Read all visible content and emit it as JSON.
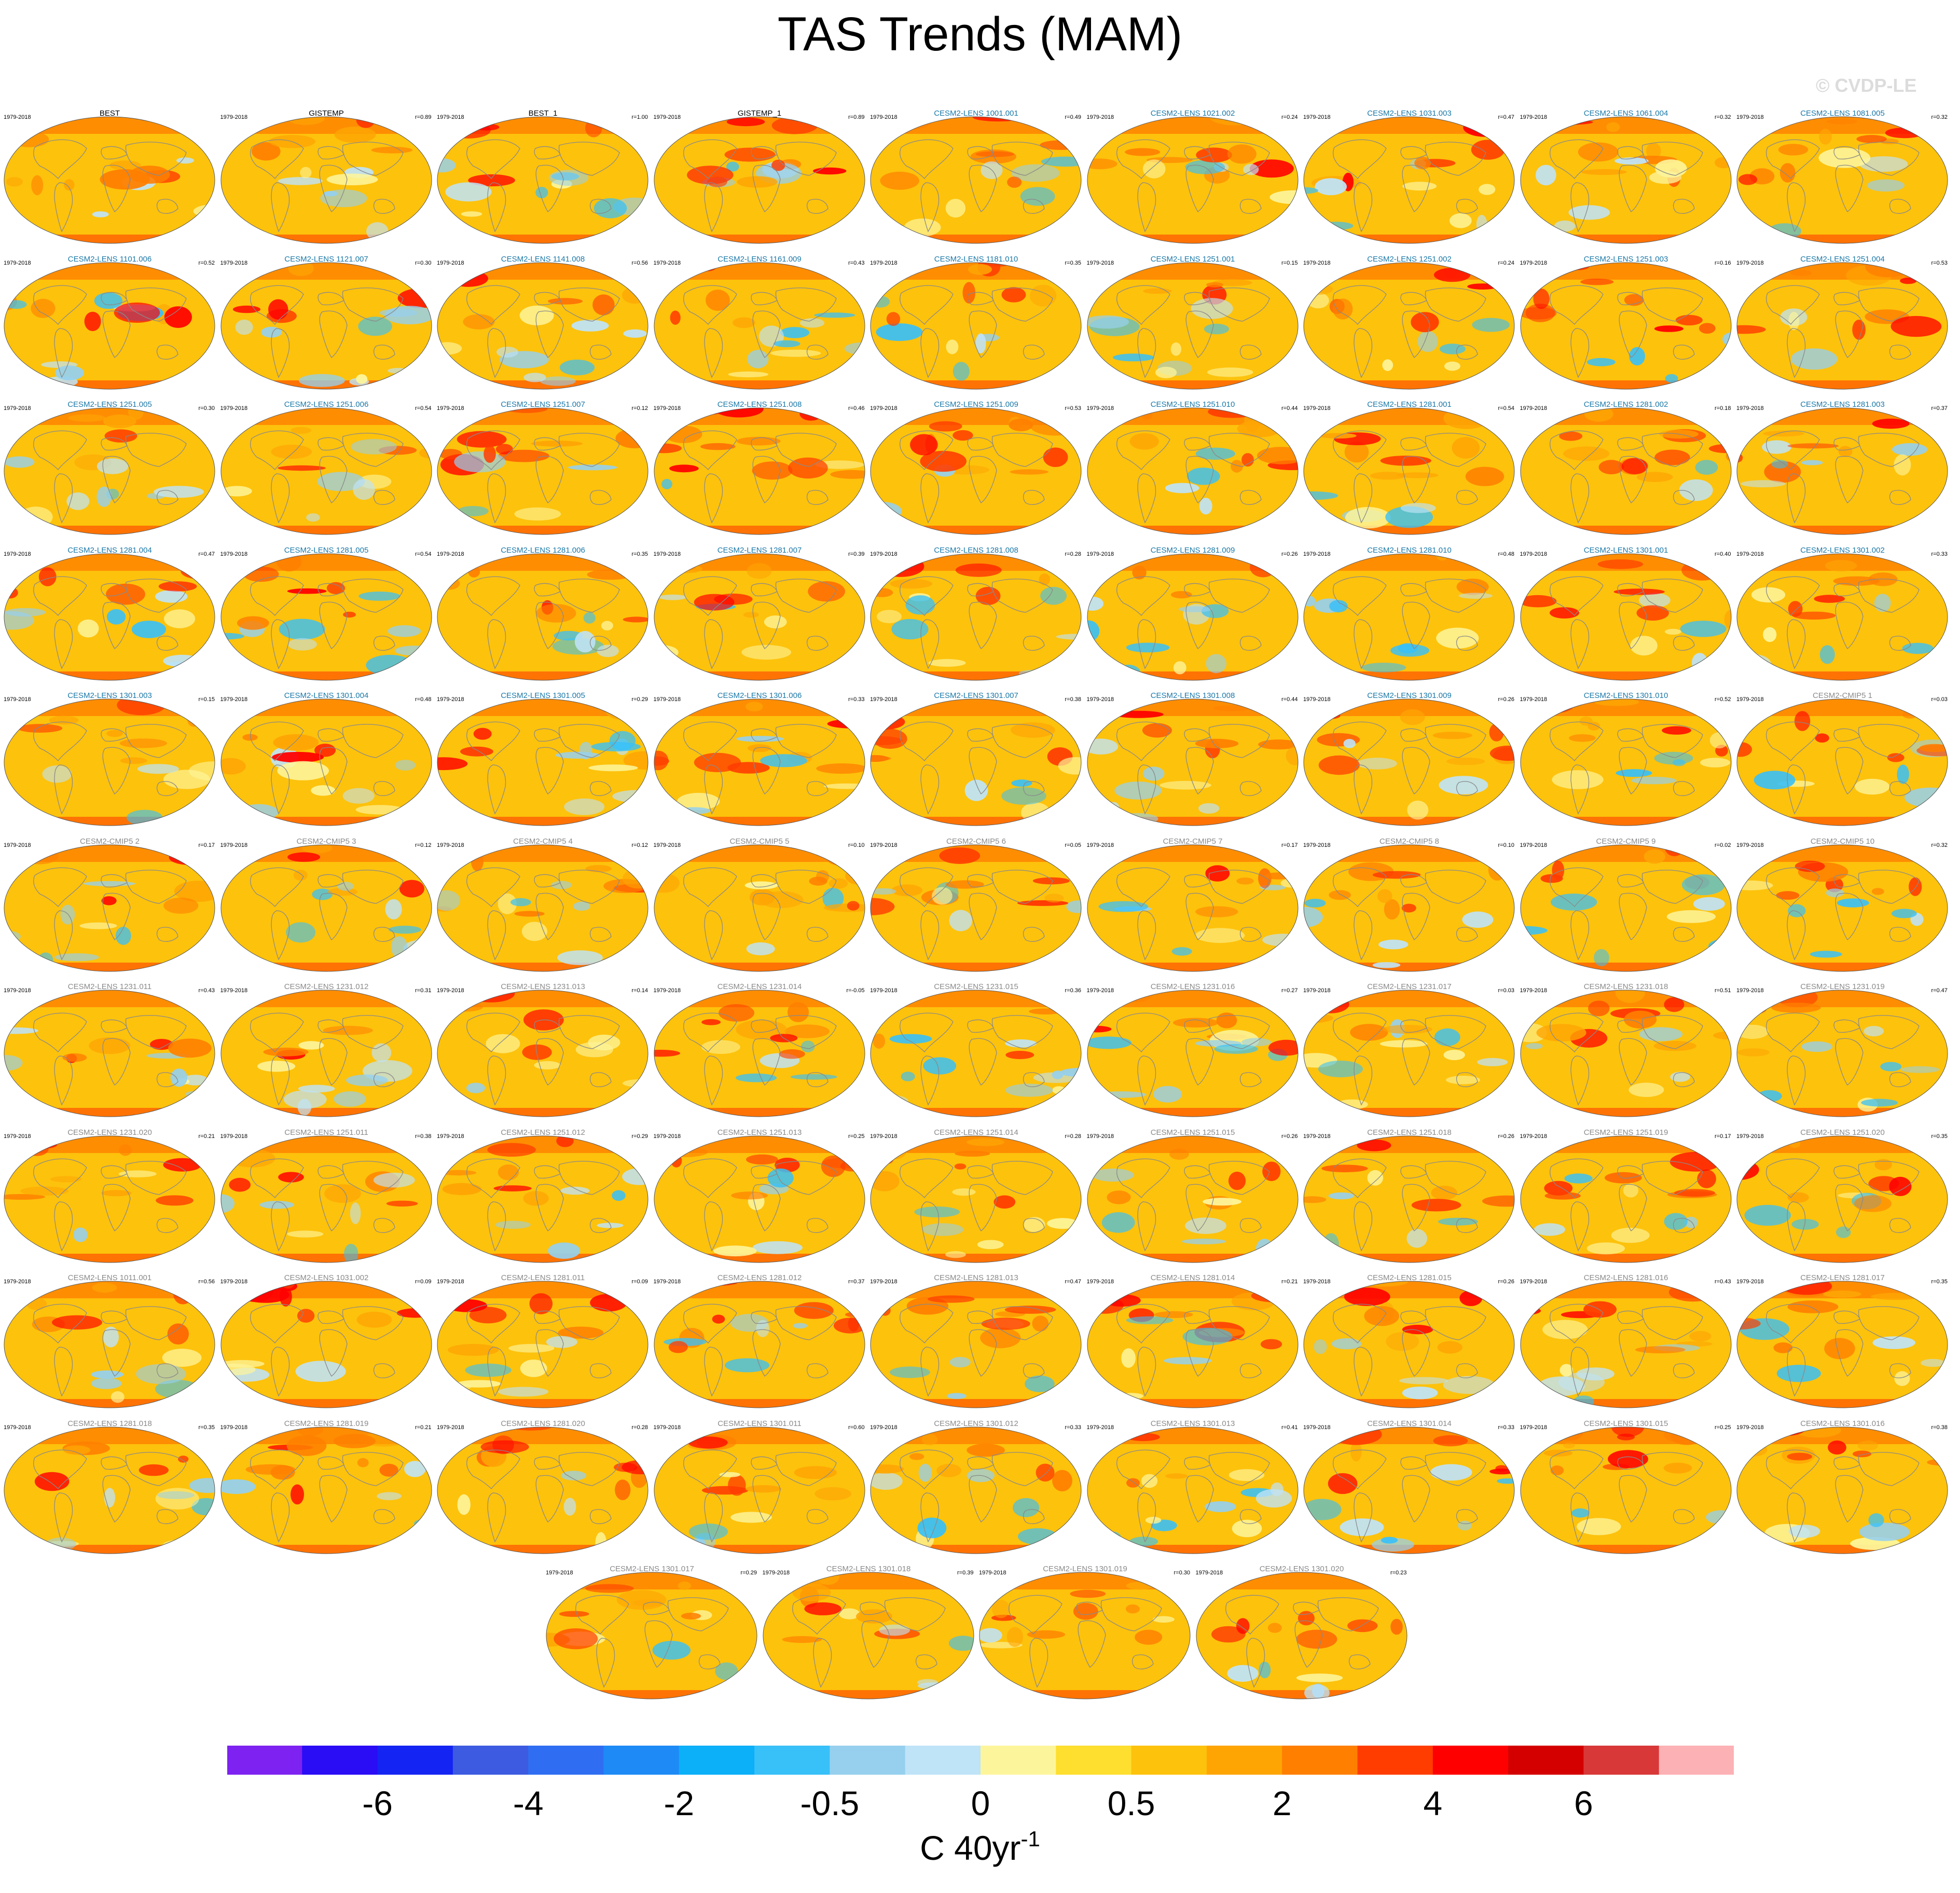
{
  "title": "TAS Trends (MAM)",
  "copyright": "© CVDP-LE",
  "colorbar": {
    "label": "C 40yr",
    "label_exponent": "-1",
    "tick_labels": [
      "-6",
      "-4",
      "-2",
      "-0.5",
      "0",
      "0.5",
      "2",
      "4",
      "6"
    ],
    "colors": [
      "#7d22f0",
      "#2a0cf5",
      "#1424f2",
      "#3d5be0",
      "#2f6ef2",
      "#1e8af5",
      "#0bb0f8",
      "#38c0f8",
      "#96d0ee",
      "#bfe3f7",
      "#fdf59b",
      "#fede2e",
      "#fdc20c",
      "#fea504",
      "#ff7f00",
      "#ff3d00",
      "#ff0000",
      "#d40000",
      "#d83838",
      "#fcb1b4"
    ]
  },
  "colors": {
    "obs_title": "#000000",
    "cesm2_lens_title": "#1a78a8",
    "other_title": "#8a8a8a",
    "map_base": "#fdc20c",
    "coast": "#8a8a8a"
  },
  "chart_data": {
    "type": "map_grid",
    "variable": "TAS",
    "season": "MAM",
    "period": "1979-2018",
    "panels": [
      {
        "name": "BEST",
        "period": "1979-2018",
        "r": "",
        "group": "obs"
      },
      {
        "name": "GISTEMP",
        "period": "1979-2018",
        "r": "r=0.89",
        "group": "obs"
      },
      {
        "name": "BEST_1",
        "period": "1979-2018",
        "r": "r=1.00",
        "group": "obs"
      },
      {
        "name": "GISTEMP_1",
        "period": "1979-2018",
        "r": "r=0.89",
        "group": "obs"
      },
      {
        "name": "CESM2-LENS 1001.001",
        "period": "1979-2018",
        "r": "r=0.49",
        "group": "lens"
      },
      {
        "name": "CESM2-LENS 1021.002",
        "period": "1979-2018",
        "r": "r=0.24",
        "group": "lens"
      },
      {
        "name": "CESM2-LENS 1031.003",
        "period": "1979-2018",
        "r": "r=0.47",
        "group": "lens"
      },
      {
        "name": "CESM2-LENS 1061.004",
        "period": "1979-2018",
        "r": "r=0.32",
        "group": "lens"
      },
      {
        "name": "CESM2-LENS 1081.005",
        "period": "1979-2018",
        "r": "r=0.32",
        "group": "lens"
      },
      {
        "name": "CESM2-LENS 1101.006",
        "period": "1979-2018",
        "r": "r=0.52",
        "group": "lens"
      },
      {
        "name": "CESM2-LENS 1121.007",
        "period": "1979-2018",
        "r": "r=0.30",
        "group": "lens"
      },
      {
        "name": "CESM2-LENS 1141.008",
        "period": "1979-2018",
        "r": "r=0.56",
        "group": "lens"
      },
      {
        "name": "CESM2-LENS 1161.009",
        "period": "1979-2018",
        "r": "r=0.43",
        "group": "lens"
      },
      {
        "name": "CESM2-LENS 1181.010",
        "period": "1979-2018",
        "r": "r=0.35",
        "group": "lens"
      },
      {
        "name": "CESM2-LENS 1251.001",
        "period": "1979-2018",
        "r": "r=0.15",
        "group": "lens"
      },
      {
        "name": "CESM2-LENS 1251.002",
        "period": "1979-2018",
        "r": "r=0.24",
        "group": "lens"
      },
      {
        "name": "CESM2-LENS 1251.003",
        "period": "1979-2018",
        "r": "r=0.16",
        "group": "lens"
      },
      {
        "name": "CESM2-LENS 1251.004",
        "period": "1979-2018",
        "r": "r=0.53",
        "group": "lens"
      },
      {
        "name": "CESM2-LENS 1251.005",
        "period": "1979-2018",
        "r": "r=0.30",
        "group": "lens"
      },
      {
        "name": "CESM2-LENS 1251.006",
        "period": "1979-2018",
        "r": "r=0.54",
        "group": "lens"
      },
      {
        "name": "CESM2-LENS 1251.007",
        "period": "1979-2018",
        "r": "r=0.12",
        "group": "lens"
      },
      {
        "name": "CESM2-LENS 1251.008",
        "period": "1979-2018",
        "r": "r=0.46",
        "group": "lens"
      },
      {
        "name": "CESM2-LENS 1251.009",
        "period": "1979-2018",
        "r": "r=0.53",
        "group": "lens"
      },
      {
        "name": "CESM2-LENS 1251.010",
        "period": "1979-2018",
        "r": "r=0.44",
        "group": "lens"
      },
      {
        "name": "CESM2-LENS 1281.001",
        "period": "1979-2018",
        "r": "r=0.54",
        "group": "lens"
      },
      {
        "name": "CESM2-LENS 1281.002",
        "period": "1979-2018",
        "r": "r=0.18",
        "group": "lens"
      },
      {
        "name": "CESM2-LENS 1281.003",
        "period": "1979-2018",
        "r": "r=0.37",
        "group": "lens"
      },
      {
        "name": "CESM2-LENS 1281.004",
        "period": "1979-2018",
        "r": "r=0.47",
        "group": "lens"
      },
      {
        "name": "CESM2-LENS 1281.005",
        "period": "1979-2018",
        "r": "r=0.54",
        "group": "lens"
      },
      {
        "name": "CESM2-LENS 1281.006",
        "period": "1979-2018",
        "r": "r=0.35",
        "group": "lens"
      },
      {
        "name": "CESM2-LENS 1281.007",
        "period": "1979-2018",
        "r": "r=0.39",
        "group": "lens"
      },
      {
        "name": "CESM2-LENS 1281.008",
        "period": "1979-2018",
        "r": "r=0.28",
        "group": "lens"
      },
      {
        "name": "CESM2-LENS 1281.009",
        "period": "1979-2018",
        "r": "r=0.26",
        "group": "lens"
      },
      {
        "name": "CESM2-LENS 1281.010",
        "period": "1979-2018",
        "r": "r=0.48",
        "group": "lens"
      },
      {
        "name": "CESM2-LENS 1301.001",
        "period": "1979-2018",
        "r": "r=0.40",
        "group": "lens"
      },
      {
        "name": "CESM2-LENS 1301.002",
        "period": "1979-2018",
        "r": "r=0.33",
        "group": "lens"
      },
      {
        "name": "CESM2-LENS 1301.003",
        "period": "1979-2018",
        "r": "r=0.15",
        "group": "lens"
      },
      {
        "name": "CESM2-LENS 1301.004",
        "period": "1979-2018",
        "r": "r=0.48",
        "group": "lens"
      },
      {
        "name": "CESM2-LENS 1301.005",
        "period": "1979-2018",
        "r": "r=0.29",
        "group": "lens"
      },
      {
        "name": "CESM2-LENS 1301.006",
        "period": "1979-2018",
        "r": "r=0.33",
        "group": "lens"
      },
      {
        "name": "CESM2-LENS 1301.007",
        "period": "1979-2018",
        "r": "r=0.38",
        "group": "lens"
      },
      {
        "name": "CESM2-LENS 1301.008",
        "period": "1979-2018",
        "r": "r=0.44",
        "group": "lens"
      },
      {
        "name": "CESM2-LENS 1301.009",
        "period": "1979-2018",
        "r": "r=0.26",
        "group": "lens"
      },
      {
        "name": "CESM2-LENS 1301.010",
        "period": "1979-2018",
        "r": "r=0.52",
        "group": "lens"
      },
      {
        "name": "CESM2-CMIP5 1",
        "period": "1979-2018",
        "r": "r=0.03",
        "group": "other"
      },
      {
        "name": "CESM2-CMIP5 2",
        "period": "1979-2018",
        "r": "r=0.17",
        "group": "other"
      },
      {
        "name": "CESM2-CMIP5 3",
        "period": "1979-2018",
        "r": "r=0.12",
        "group": "other"
      },
      {
        "name": "CESM2-CMIP5 4",
        "period": "1979-2018",
        "r": "r=0.12",
        "group": "other"
      },
      {
        "name": "CESM2-CMIP5 5",
        "period": "1979-2018",
        "r": "r=0.10",
        "group": "other"
      },
      {
        "name": "CESM2-CMIP5 6",
        "period": "1979-2018",
        "r": "r=0.05",
        "group": "other"
      },
      {
        "name": "CESM2-CMIP5 7",
        "period": "1979-2018",
        "r": "r=0.17",
        "group": "other"
      },
      {
        "name": "CESM2-CMIP5 8",
        "period": "1979-2018",
        "r": "r=0.10",
        "group": "other"
      },
      {
        "name": "CESM2-CMIP5 9",
        "period": "1979-2018",
        "r": "r=0.02",
        "group": "other"
      },
      {
        "name": "CESM2-CMIP5 10",
        "period": "1979-2018",
        "r": "r=0.32",
        "group": "other"
      },
      {
        "name": "CESM2-LENS 1231.011",
        "period": "1979-2018",
        "r": "r=0.43",
        "group": "other"
      },
      {
        "name": "CESM2-LENS 1231.012",
        "period": "1979-2018",
        "r": "r=0.31",
        "group": "other"
      },
      {
        "name": "CESM2-LENS 1231.013",
        "period": "1979-2018",
        "r": "r=0.14",
        "group": "other"
      },
      {
        "name": "CESM2-LENS 1231.014",
        "period": "1979-2018",
        "r": "r=-0.05",
        "group": "other"
      },
      {
        "name": "CESM2-LENS 1231.015",
        "period": "1979-2018",
        "r": "r=0.36",
        "group": "other"
      },
      {
        "name": "CESM2-LENS 1231.016",
        "period": "1979-2018",
        "r": "r=0.27",
        "group": "other"
      },
      {
        "name": "CESM2-LENS 1231.017",
        "period": "1979-2018",
        "r": "r=0.03",
        "group": "other"
      },
      {
        "name": "CESM2-LENS 1231.018",
        "period": "1979-2018",
        "r": "r=0.51",
        "group": "other"
      },
      {
        "name": "CESM2-LENS 1231.019",
        "period": "1979-2018",
        "r": "r=0.47",
        "group": "other"
      },
      {
        "name": "CESM2-LENS 1231.020",
        "period": "1979-2018",
        "r": "r=0.21",
        "group": "other"
      },
      {
        "name": "CESM2-LENS 1251.011",
        "period": "1979-2018",
        "r": "r=0.38",
        "group": "other"
      },
      {
        "name": "CESM2-LENS 1251.012",
        "period": "1979-2018",
        "r": "r=0.29",
        "group": "other"
      },
      {
        "name": "CESM2-LENS 1251.013",
        "period": "1979-2018",
        "r": "r=0.25",
        "group": "other"
      },
      {
        "name": "CESM2-LENS 1251.014",
        "period": "1979-2018",
        "r": "r=0.28",
        "group": "other"
      },
      {
        "name": "CESM2-LENS 1251.015",
        "period": "1979-2018",
        "r": "r=0.26",
        "group": "other"
      },
      {
        "name": "CESM2-LENS 1251.018",
        "period": "1979-2018",
        "r": "r=0.26",
        "group": "other"
      },
      {
        "name": "CESM2-LENS 1251.019",
        "period": "1979-2018",
        "r": "r=0.17",
        "group": "other"
      },
      {
        "name": "CESM2-LENS 1251.020",
        "period": "1979-2018",
        "r": "r=0.35",
        "group": "other"
      },
      {
        "name": "CESM2-LENS 1011.001",
        "period": "1979-2018",
        "r": "r=0.56",
        "group": "other"
      },
      {
        "name": "CESM2-LENS 1031.002",
        "period": "1979-2018",
        "r": "r=0.09",
        "group": "other"
      },
      {
        "name": "CESM2-LENS 1281.011",
        "period": "1979-2018",
        "r": "r=0.09",
        "group": "other"
      },
      {
        "name": "CESM2-LENS 1281.012",
        "period": "1979-2018",
        "r": "r=0.37",
        "group": "other"
      },
      {
        "name": "CESM2-LENS 1281.013",
        "period": "1979-2018",
        "r": "r=0.47",
        "group": "other"
      },
      {
        "name": "CESM2-LENS 1281.014",
        "period": "1979-2018",
        "r": "r=0.21",
        "group": "other"
      },
      {
        "name": "CESM2-LENS 1281.015",
        "period": "1979-2018",
        "r": "r=0.26",
        "group": "other"
      },
      {
        "name": "CESM2-LENS 1281.016",
        "period": "1979-2018",
        "r": "r=0.43",
        "group": "other"
      },
      {
        "name": "CESM2-LENS 1281.017",
        "period": "1979-2018",
        "r": "r=0.35",
        "group": "other"
      },
      {
        "name": "CESM2-LENS 1281.018",
        "period": "1979-2018",
        "r": "r=0.35",
        "group": "other"
      },
      {
        "name": "CESM2-LENS 1281.019",
        "period": "1979-2018",
        "r": "r=0.21",
        "group": "other"
      },
      {
        "name": "CESM2-LENS 1281.020",
        "period": "1979-2018",
        "r": "r=0.28",
        "group": "other"
      },
      {
        "name": "CESM2-LENS 1301.011",
        "period": "1979-2018",
        "r": "r=0.60",
        "group": "other"
      },
      {
        "name": "CESM2-LENS 1301.012",
        "period": "1979-2018",
        "r": "r=0.33",
        "group": "other"
      },
      {
        "name": "CESM2-LENS 1301.013",
        "period": "1979-2018",
        "r": "r=0.41",
        "group": "other"
      },
      {
        "name": "CESM2-LENS 1301.014",
        "period": "1979-2018",
        "r": "r=0.33",
        "group": "other"
      },
      {
        "name": "CESM2-LENS 1301.015",
        "period": "1979-2018",
        "r": "r=0.25",
        "group": "other"
      },
      {
        "name": "CESM2-LENS 1301.016",
        "period": "1979-2018",
        "r": "r=0.38",
        "group": "other"
      },
      {
        "name": "CESM2-LENS 1301.017",
        "period": "1979-2018",
        "r": "r=0.29",
        "group": "other"
      },
      {
        "name": "CESM2-LENS 1301.018",
        "period": "1979-2018",
        "r": "r=0.39",
        "group": "other"
      },
      {
        "name": "CESM2-LENS 1301.019",
        "period": "1979-2018",
        "r": "r=0.30",
        "group": "other"
      },
      {
        "name": "CESM2-LENS 1301.020",
        "period": "1979-2018",
        "r": "r=0.23",
        "group": "other"
      }
    ]
  }
}
